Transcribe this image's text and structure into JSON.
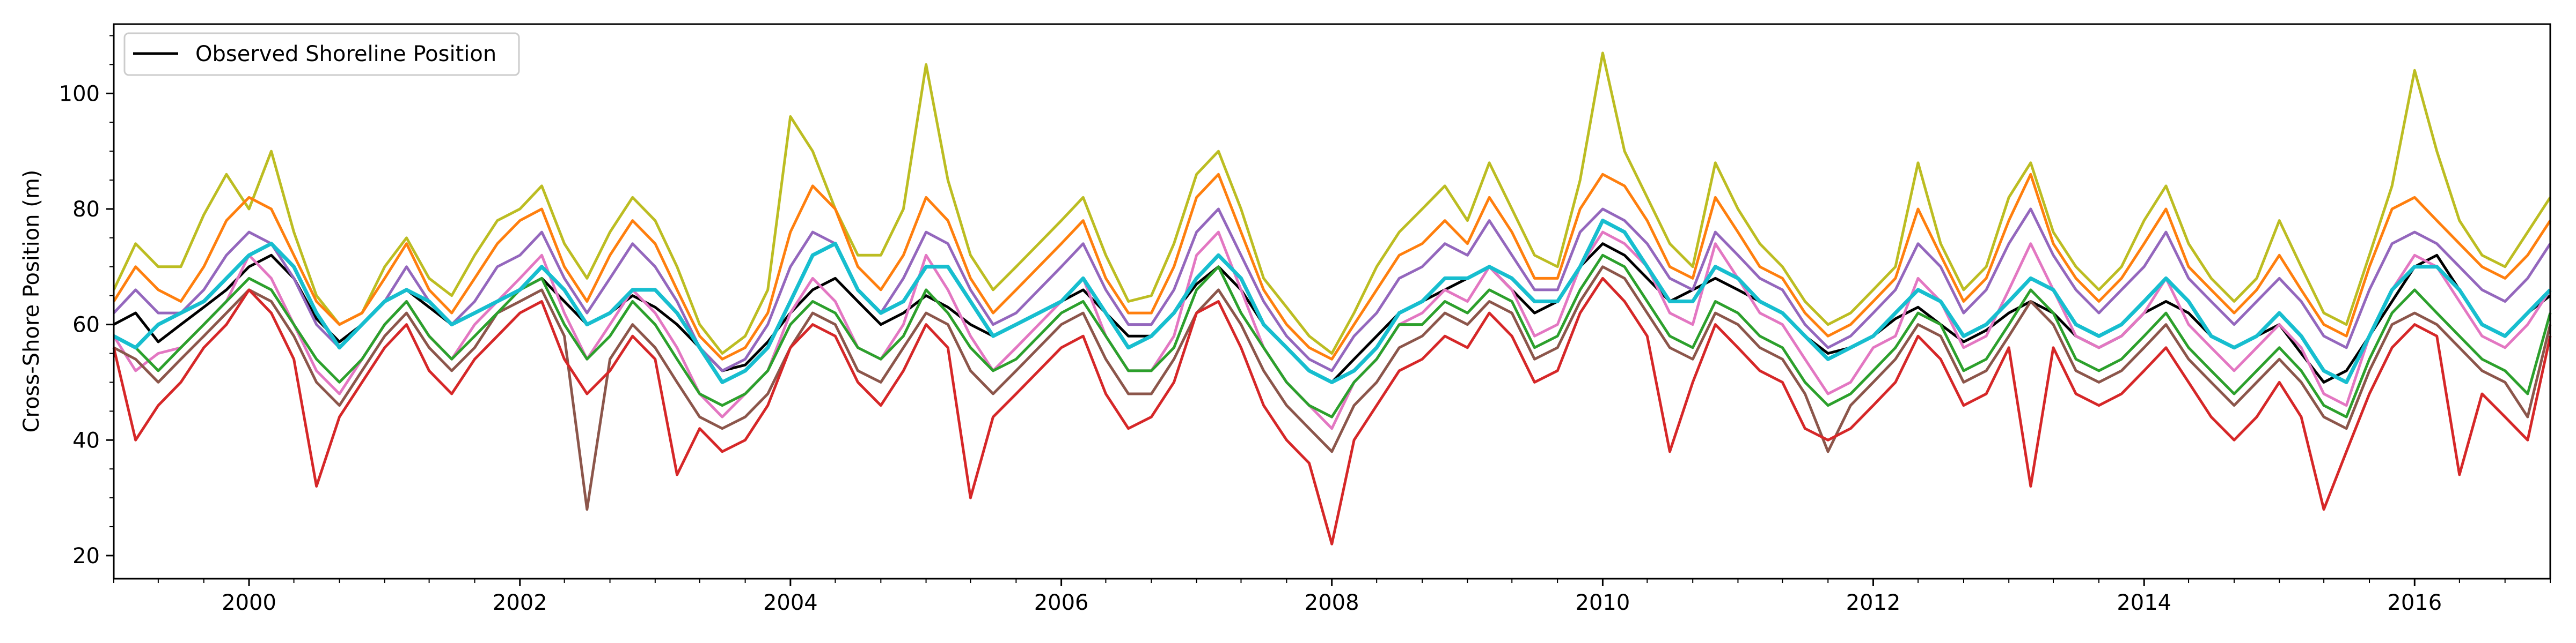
{
  "chart_data": {
    "type": "line",
    "title": "",
    "xlabel": "",
    "ylabel": "Cross-Shore Position (m)",
    "xlim": [
      "1999-01-01",
      "2017-01-01"
    ],
    "ylim": [
      16,
      112
    ],
    "x_ticks": [
      "2000",
      "2002",
      "2004",
      "2006",
      "2008",
      "2010",
      "2012",
      "2014",
      "2016"
    ],
    "y_ticks": [
      20,
      40,
      60,
      80,
      100
    ],
    "grid": false,
    "legend": {
      "placement": "top-left",
      "entries": [
        "Observed Shoreline Position"
      ]
    },
    "x_dates": [
      "1999-01-01",
      "1999-03-01",
      "1999-05-01",
      "1999-07-01",
      "1999-09-01",
      "1999-11-01",
      "2000-01-01",
      "2000-03-01",
      "2000-05-01",
      "2000-07-01",
      "2000-09-01",
      "2000-11-01",
      "2001-01-01",
      "2001-03-01",
      "2001-05-01",
      "2001-07-01",
      "2001-09-01",
      "2001-11-01",
      "2002-01-01",
      "2002-03-01",
      "2002-05-01",
      "2002-07-01",
      "2002-09-01",
      "2002-11-01",
      "2003-01-01",
      "2003-03-01",
      "2003-05-01",
      "2003-07-01",
      "2003-09-01",
      "2003-11-01",
      "2004-01-01",
      "2004-03-01",
      "2004-05-01",
      "2004-07-01",
      "2004-09-01",
      "2004-11-01",
      "2005-01-01",
      "2005-03-01",
      "2005-05-01",
      "2005-07-01",
      "2005-09-01",
      "2005-11-01",
      "2006-01-01",
      "2006-03-01",
      "2006-05-01",
      "2006-07-01",
      "2006-09-01",
      "2006-11-01",
      "2007-01-01",
      "2007-03-01",
      "2007-05-01",
      "2007-07-01",
      "2007-09-01",
      "2007-11-01",
      "2008-01-01",
      "2008-03-01",
      "2008-05-01",
      "2008-07-01",
      "2008-09-01",
      "2008-11-01",
      "2009-01-01",
      "2009-03-01",
      "2009-05-01",
      "2009-07-01",
      "2009-09-01",
      "2009-11-01",
      "2010-01-01",
      "2010-03-01",
      "2010-05-01",
      "2010-07-01",
      "2010-09-01",
      "2010-11-01",
      "2011-01-01",
      "2011-03-01",
      "2011-05-01",
      "2011-07-01",
      "2011-09-01",
      "2011-11-01",
      "2012-01-01",
      "2012-03-01",
      "2012-05-01",
      "2012-07-01",
      "2012-09-01",
      "2012-11-01",
      "2013-01-01",
      "2013-03-01",
      "2013-05-01",
      "2013-07-01",
      "2013-09-01",
      "2013-11-01",
      "2014-01-01",
      "2014-03-01",
      "2014-05-01",
      "2014-07-01",
      "2014-09-01",
      "2014-11-01",
      "2015-01-01",
      "2015-03-01",
      "2015-05-01",
      "2015-07-01",
      "2015-09-01",
      "2015-11-01",
      "2016-01-01",
      "2016-03-01",
      "2016-05-01",
      "2016-07-01",
      "2016-09-01",
      "2016-11-01",
      "2017-01-01"
    ],
    "series": [
      {
        "name": "Observed Shoreline Position",
        "color": "#000000",
        "values": [
          60,
          62,
          57,
          60,
          63,
          66,
          70,
          72,
          68,
          61,
          57,
          60,
          64,
          66,
          63,
          60,
          62,
          64,
          66,
          68,
          64,
          60,
          62,
          65,
          63,
          60,
          56,
          52,
          53,
          57,
          62,
          66,
          68,
          64,
          60,
          62,
          65,
          63,
          60,
          58,
          60,
          62,
          64,
          66,
          62,
          58,
          58,
          62,
          67,
          70,
          66,
          60,
          56,
          52,
          50,
          54,
          58,
          62,
          64,
          66,
          68,
          70,
          66,
          62,
          64,
          70,
          74,
          72,
          68,
          64,
          66,
          68,
          66,
          64,
          62,
          58,
          55,
          56,
          58,
          61,
          63,
          60,
          57,
          59,
          62,
          64,
          62,
          58,
          56,
          58,
          62,
          64,
          62,
          58,
          56,
          58,
          60,
          55,
          50,
          52,
          58,
          64,
          70,
          72,
          66,
          60,
          58,
          62,
          65
        ]
      },
      {
        "color": "#bcbd22",
        "values": [
          66,
          74,
          70,
          70,
          79,
          86,
          80,
          90,
          76,
          65,
          60,
          62,
          70,
          75,
          68,
          65,
          72,
          78,
          80,
          84,
          74,
          68,
          76,
          82,
          78,
          70,
          60,
          55,
          58,
          66,
          96,
          90,
          80,
          72,
          72,
          80,
          105,
          85,
          72,
          66,
          70,
          74,
          78,
          82,
          72,
          64,
          65,
          74,
          86,
          90,
          80,
          68,
          63,
          58,
          55,
          62,
          70,
          76,
          80,
          84,
          78,
          88,
          80,
          72,
          70,
          85,
          107,
          90,
          82,
          74,
          70,
          88,
          80,
          74,
          70,
          64,
          60,
          62,
          66,
          70,
          88,
          74,
          66,
          70,
          82,
          88,
          76,
          70,
          66,
          70,
          78,
          84,
          74,
          68,
          64,
          68,
          78,
          70,
          62,
          60,
          72,
          84,
          104,
          90,
          78,
          72,
          70,
          76,
          82
        ]
      },
      {
        "color": "#ff7f0e",
        "values": [
          64,
          70,
          66,
          64,
          70,
          78,
          82,
          80,
          72,
          64,
          60,
          62,
          68,
          74,
          66,
          62,
          68,
          74,
          78,
          80,
          70,
          64,
          72,
          78,
          74,
          66,
          58,
          54,
          56,
          62,
          76,
          84,
          80,
          70,
          66,
          72,
          82,
          78,
          68,
          62,
          66,
          70,
          74,
          78,
          68,
          62,
          62,
          70,
          82,
          86,
          76,
          66,
          60,
          56,
          54,
          60,
          66,
          72,
          74,
          78,
          74,
          82,
          76,
          68,
          68,
          80,
          86,
          84,
          78,
          70,
          68,
          82,
          76,
          70,
          68,
          62,
          58,
          60,
          64,
          68,
          80,
          72,
          64,
          68,
          78,
          86,
          74,
          68,
          64,
          68,
          74,
          80,
          70,
          66,
          62,
          66,
          72,
          66,
          60,
          58,
          70,
          80,
          82,
          78,
          74,
          70,
          68,
          72,
          78
        ]
      },
      {
        "color": "#9467bd",
        "values": [
          62,
          66,
          62,
          62,
          66,
          72,
          76,
          74,
          68,
          60,
          56,
          60,
          64,
          70,
          64,
          60,
          64,
          70,
          72,
          76,
          68,
          62,
          68,
          74,
          70,
          64,
          56,
          52,
          54,
          60,
          70,
          76,
          74,
          66,
          62,
          68,
          76,
          74,
          66,
          60,
          62,
          66,
          70,
          74,
          66,
          60,
          60,
          66,
          76,
          80,
          72,
          64,
          58,
          54,
          52,
          58,
          62,
          68,
          70,
          74,
          72,
          78,
          72,
          66,
          66,
          76,
          80,
          78,
          74,
          68,
          66,
          76,
          72,
          68,
          66,
          60,
          56,
          58,
          62,
          66,
          74,
          70,
          62,
          66,
          74,
          80,
          72,
          66,
          62,
          66,
          70,
          76,
          68,
          64,
          60,
          64,
          68,
          64,
          58,
          56,
          66,
          74,
          76,
          74,
          70,
          66,
          64,
          68,
          74
        ]
      },
      {
        "color": "#e377c2",
        "values": [
          58,
          52,
          55,
          56,
          60,
          64,
          72,
          68,
          60,
          52,
          48,
          54,
          60,
          64,
          58,
          54,
          60,
          64,
          68,
          72,
          62,
          54,
          60,
          66,
          62,
          56,
          48,
          44,
          48,
          52,
          62,
          68,
          64,
          56,
          54,
          60,
          72,
          66,
          58,
          52,
          56,
          60,
          64,
          68,
          58,
          52,
          52,
          58,
          72,
          76,
          66,
          56,
          50,
          46,
          42,
          50,
          54,
          60,
          62,
          66,
          64,
          70,
          66,
          58,
          60,
          70,
          76,
          74,
          70,
          62,
          60,
          74,
          68,
          62,
          60,
          54,
          48,
          50,
          56,
          58,
          68,
          64,
          56,
          58,
          66,
          74,
          66,
          58,
          56,
          58,
          62,
          68,
          60,
          56,
          52,
          56,
          60,
          56,
          48,
          46,
          58,
          66,
          72,
          70,
          64,
          58,
          56,
          60,
          66
        ]
      },
      {
        "color": "#8c564b",
        "values": [
          56,
          54,
          50,
          54,
          58,
          62,
          66,
          64,
          58,
          50,
          46,
          52,
          58,
          62,
          56,
          52,
          56,
          62,
          64,
          66,
          58,
          28,
          54,
          60,
          56,
          50,
          44,
          42,
          44,
          48,
          56,
          62,
          60,
          52,
          50,
          56,
          62,
          60,
          52,
          48,
          52,
          56,
          60,
          62,
          54,
          48,
          48,
          54,
          62,
          66,
          60,
          52,
          46,
          42,
          38,
          46,
          50,
          56,
          58,
          62,
          60,
          64,
          62,
          54,
          56,
          64,
          70,
          68,
          62,
          56,
          54,
          62,
          60,
          56,
          54,
          48,
          38,
          46,
          50,
          54,
          60,
          58,
          50,
          52,
          58,
          64,
          60,
          52,
          50,
          52,
          56,
          60,
          54,
          50,
          46,
          50,
          54,
          50,
          44,
          42,
          52,
          60,
          62,
          60,
          56,
          52,
          50,
          44,
          60
        ]
      },
      {
        "color": "#2ca02c",
        "values": [
          58,
          56,
          52,
          56,
          60,
          64,
          68,
          66,
          60,
          54,
          50,
          54,
          60,
          64,
          58,
          54,
          58,
          62,
          66,
          68,
          60,
          54,
          58,
          64,
          60,
          54,
          48,
          46,
          48,
          52,
          60,
          64,
          62,
          56,
          54,
          58,
          66,
          62,
          56,
          52,
          54,
          58,
          62,
          64,
          58,
          52,
          52,
          56,
          66,
          70,
          62,
          56,
          50,
          46,
          44,
          50,
          54,
          60,
          60,
          64,
          62,
          66,
          64,
          56,
          58,
          66,
          72,
          70,
          64,
          58,
          56,
          64,
          62,
          58,
          56,
          50,
          46,
          48,
          52,
          56,
          62,
          60,
          52,
          54,
          60,
          66,
          62,
          54,
          52,
          54,
          58,
          62,
          56,
          52,
          48,
          52,
          56,
          52,
          46,
          44,
          54,
          62,
          66,
          62,
          58,
          54,
          52,
          48,
          62
        ]
      },
      {
        "color": "#d62728",
        "values": [
          56,
          40,
          46,
          50,
          56,
          60,
          66,
          62,
          54,
          32,
          44,
          50,
          56,
          60,
          52,
          48,
          54,
          58,
          62,
          64,
          54,
          48,
          52,
          58,
          54,
          34,
          42,
          38,
          40,
          46,
          56,
          60,
          58,
          50,
          46,
          52,
          60,
          56,
          30,
          44,
          48,
          52,
          56,
          58,
          48,
          42,
          44,
          50,
          62,
          64,
          56,
          46,
          40,
          36,
          22,
          40,
          46,
          52,
          54,
          58,
          56,
          62,
          58,
          50,
          52,
          62,
          68,
          64,
          58,
          38,
          50,
          60,
          56,
          52,
          50,
          42,
          40,
          42,
          46,
          50,
          58,
          54,
          46,
          48,
          56,
          32,
          56,
          48,
          46,
          48,
          52,
          56,
          50,
          44,
          40,
          44,
          50,
          44,
          28,
          38,
          48,
          56,
          60,
          58,
          34,
          48,
          44,
          40,
          58
        ]
      },
      {
        "color": "#17becf",
        "values": [
          58,
          56,
          60,
          62,
          64,
          68,
          72,
          74,
          70,
          62,
          56,
          60,
          64,
          66,
          64,
          60,
          62,
          64,
          66,
          70,
          66,
          60,
          62,
          66,
          66,
          62,
          56,
          50,
          52,
          56,
          64,
          72,
          74,
          66,
          62,
          64,
          70,
          70,
          64,
          58,
          60,
          62,
          64,
          68,
          62,
          56,
          58,
          62,
          68,
          72,
          68,
          60,
          56,
          52,
          50,
          52,
          56,
          62,
          64,
          68,
          68,
          70,
          68,
          64,
          64,
          70,
          78,
          76,
          70,
          64,
          64,
          70,
          68,
          64,
          62,
          58,
          54,
          56,
          58,
          62,
          66,
          64,
          58,
          60,
          64,
          68,
          66,
          60,
          58,
          60,
          64,
          68,
          64,
          58,
          56,
          58,
          62,
          58,
          52,
          50,
          58,
          66,
          70,
          70,
          66,
          60,
          58,
          62,
          66
        ]
      }
    ]
  }
}
